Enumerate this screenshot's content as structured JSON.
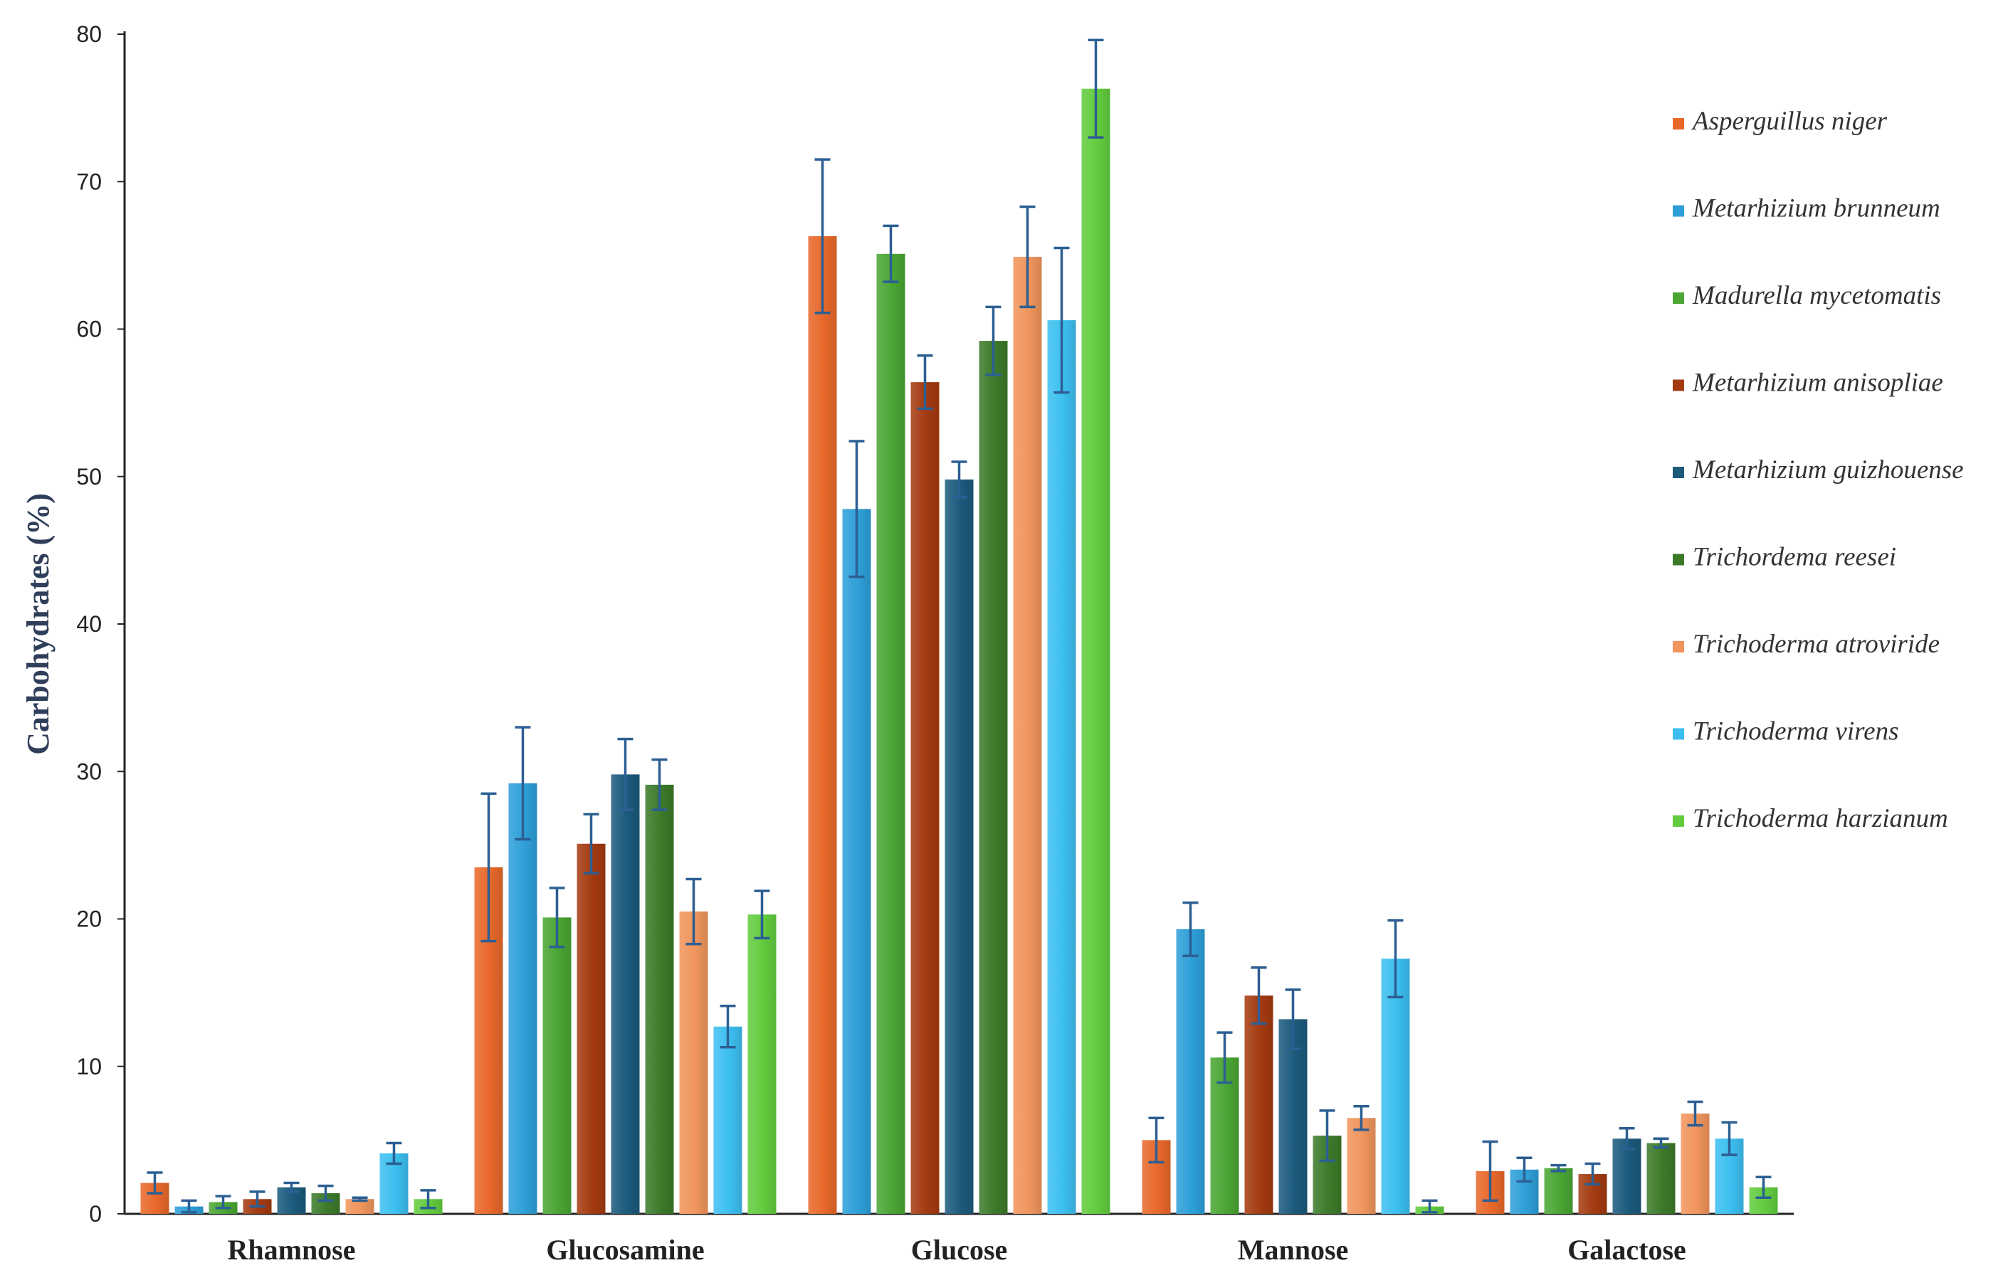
{
  "chart_data": {
    "type": "bar",
    "title": "",
    "xlabel": "",
    "ylabel": "Carbohydrates (%)",
    "ylim": [
      0,
      80
    ],
    "yticks": [
      0,
      10,
      20,
      30,
      40,
      50,
      60,
      70,
      80
    ],
    "categories": [
      "Rhamnose",
      "Glucosamine",
      "Glucose",
      "Mannose",
      "Galactose"
    ],
    "grid": false,
    "legend_position": "right",
    "error_bars": true,
    "series": [
      {
        "name": "Asperguillus niger",
        "color": "#e8682a",
        "values": [
          2.1,
          23.5,
          66.3,
          5.0,
          2.9
        ],
        "errors": [
          0.7,
          5.0,
          5.2,
          1.5,
          2.0
        ]
      },
      {
        "name": "Metarhizium brunneum",
        "color": "#2e9fd8",
        "values": [
          0.5,
          29.2,
          47.8,
          19.3,
          3.0
        ],
        "errors": [
          0.4,
          3.8,
          4.6,
          1.8,
          0.8
        ]
      },
      {
        "name": "Madurella mycetomatis",
        "color": "#4aa633",
        "values": [
          0.8,
          20.1,
          65.1,
          10.6,
          3.1
        ],
        "errors": [
          0.4,
          2.0,
          1.9,
          1.7,
          0.2
        ]
      },
      {
        "name": "Metarhizium anisopliae",
        "color": "#a43a10",
        "values": [
          1.0,
          25.1,
          56.4,
          14.8,
          2.7
        ],
        "errors": [
          0.5,
          2.0,
          1.8,
          1.9,
          0.7
        ]
      },
      {
        "name": "Metarhizium guizhouense",
        "color": "#1c5a7c",
        "values": [
          1.8,
          29.8,
          49.8,
          13.2,
          5.1
        ],
        "errors": [
          0.3,
          2.4,
          1.2,
          2.0,
          0.7
        ]
      },
      {
        "name": "Trichordema reesei",
        "color": "#3c7a2a",
        "values": [
          1.4,
          29.1,
          59.2,
          5.3,
          4.8
        ],
        "errors": [
          0.5,
          1.7,
          2.3,
          1.7,
          0.3
        ]
      },
      {
        "name": "Trichoderma atroviride",
        "color": "#f0955c",
        "values": [
          1.0,
          20.5,
          64.9,
          6.5,
          6.8
        ],
        "errors": [
          0.1,
          2.2,
          3.4,
          0.8,
          0.8
        ]
      },
      {
        "name": "Trichoderma virens",
        "color": "#3cbff0",
        "values": [
          4.1,
          12.7,
          60.6,
          17.3,
          5.1
        ],
        "errors": [
          0.7,
          1.4,
          4.9,
          2.6,
          1.1
        ]
      },
      {
        "name": "Trichoderma harzianum",
        "color": "#62cc3e",
        "values": [
          1.0,
          20.3,
          76.3,
          0.5,
          1.8
        ],
        "errors": [
          0.6,
          1.6,
          3.3,
          0.4,
          0.7
        ]
      }
    ]
  }
}
